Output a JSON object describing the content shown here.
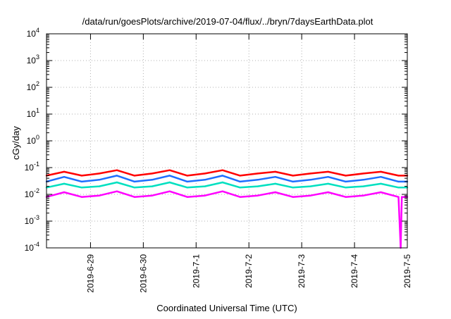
{
  "chart_data": {
    "type": "line",
    "title": "/data/run/goesPlots/archive/2019-07-04/flux/../bryn/7daysEarthData.plot",
    "xlabel": "Coordinated Universal Time (UTC)",
    "ylabel": "cGy/day",
    "y_scale": "log",
    "ylim": [
      0.0001,
      10000
    ],
    "y_ticks": [
      {
        "base": "10",
        "exp": "-4",
        "value": 0.0001
      },
      {
        "base": "10",
        "exp": "-3",
        "value": 0.001
      },
      {
        "base": "10",
        "exp": "-2",
        "value": 0.01
      },
      {
        "base": "10",
        "exp": "-1",
        "value": 0.1
      },
      {
        "base": "10",
        "exp": "0",
        "value": 1
      },
      {
        "base": "10",
        "exp": "1",
        "value": 10
      },
      {
        "base": "10",
        "exp": "2",
        "value": 100
      },
      {
        "base": "10",
        "exp": "3",
        "value": 1000
      },
      {
        "base": "10",
        "exp": "4",
        "value": 10000
      }
    ],
    "xlim": [
      "2019-06-28 04:00",
      "2019-07-05 00:00"
    ],
    "x_ticks": [
      "2019-6-29",
      "2019-6-30",
      "2019-7-1",
      "2019-7-2",
      "2019-7-3",
      "2019-7-4",
      "2019-7-5"
    ],
    "grid": true,
    "series": [
      {
        "color": "#ff0000",
        "x": [
          "2019-06-28 04:00",
          "2019-06-28 12:00",
          "2019-06-28 20:00",
          "2019-06-29 04:00",
          "2019-06-29 12:00",
          "2019-06-29 20:00",
          "2019-06-30 04:00",
          "2019-06-30 12:00",
          "2019-06-30 20:00",
          "2019-07-01 04:00",
          "2019-07-01 12:00",
          "2019-07-01 20:00",
          "2019-07-02 04:00",
          "2019-07-02 12:00",
          "2019-07-02 20:00",
          "2019-07-03 04:00",
          "2019-07-03 12:00",
          "2019-07-03 20:00",
          "2019-07-04 04:00",
          "2019-07-04 12:00",
          "2019-07-04 20:00",
          "2019-07-05 00:00"
        ],
        "values": [
          0.05,
          0.07,
          0.05,
          0.06,
          0.08,
          0.05,
          0.06,
          0.08,
          0.05,
          0.06,
          0.08,
          0.05,
          0.06,
          0.07,
          0.05,
          0.06,
          0.07,
          0.05,
          0.06,
          0.07,
          0.05,
          0.05
        ]
      },
      {
        "color": "#1e6eff",
        "x": [
          "2019-06-28 04:00",
          "2019-06-28 12:00",
          "2019-06-28 20:00",
          "2019-06-29 04:00",
          "2019-06-29 12:00",
          "2019-06-29 20:00",
          "2019-06-30 04:00",
          "2019-06-30 12:00",
          "2019-06-30 20:00",
          "2019-07-01 04:00",
          "2019-07-01 12:00",
          "2019-07-01 20:00",
          "2019-07-02 04:00",
          "2019-07-02 12:00",
          "2019-07-02 20:00",
          "2019-07-03 04:00",
          "2019-07-03 12:00",
          "2019-07-03 20:00",
          "2019-07-04 04:00",
          "2019-07-04 12:00",
          "2019-07-04 20:00",
          "2019-07-05 00:00"
        ],
        "values": [
          0.03,
          0.045,
          0.03,
          0.035,
          0.05,
          0.03,
          0.035,
          0.05,
          0.03,
          0.035,
          0.05,
          0.03,
          0.035,
          0.045,
          0.03,
          0.035,
          0.045,
          0.03,
          0.035,
          0.045,
          0.03,
          0.03
        ]
      },
      {
        "color": "#00e0c0",
        "x": [
          "2019-06-28 04:00",
          "2019-06-28 12:00",
          "2019-06-28 20:00",
          "2019-06-29 04:00",
          "2019-06-29 12:00",
          "2019-06-29 20:00",
          "2019-06-30 04:00",
          "2019-06-30 12:00",
          "2019-06-30 20:00",
          "2019-07-01 04:00",
          "2019-07-01 12:00",
          "2019-07-01 20:00",
          "2019-07-02 04:00",
          "2019-07-02 12:00",
          "2019-07-02 20:00",
          "2019-07-03 04:00",
          "2019-07-03 12:00",
          "2019-07-03 20:00",
          "2019-07-04 04:00",
          "2019-07-04 12:00",
          "2019-07-04 20:00",
          "2019-07-05 00:00"
        ],
        "values": [
          0.018,
          0.025,
          0.018,
          0.02,
          0.028,
          0.018,
          0.02,
          0.028,
          0.018,
          0.02,
          0.028,
          0.018,
          0.02,
          0.025,
          0.018,
          0.02,
          0.025,
          0.018,
          0.02,
          0.025,
          0.018,
          0.018
        ]
      },
      {
        "color": "#ff00ff",
        "x": [
          "2019-06-28 04:00",
          "2019-06-28 12:00",
          "2019-06-28 20:00",
          "2019-06-29 04:00",
          "2019-06-29 12:00",
          "2019-06-29 20:00",
          "2019-06-30 04:00",
          "2019-06-30 12:00",
          "2019-06-30 20:00",
          "2019-07-01 04:00",
          "2019-07-01 12:00",
          "2019-07-01 20:00",
          "2019-07-02 04:00",
          "2019-07-02 12:00",
          "2019-07-02 20:00",
          "2019-07-03 04:00",
          "2019-07-03 12:00",
          "2019-07-03 20:00",
          "2019-07-04 04:00",
          "2019-07-04 12:00",
          "2019-07-04 20:00",
          "2019-07-04 21:00",
          "2019-07-04 21:30",
          "2019-07-05 00:00"
        ],
        "values": [
          0.008,
          0.012,
          0.008,
          0.009,
          0.013,
          0.008,
          0.009,
          0.013,
          0.008,
          0.009,
          0.013,
          0.008,
          0.009,
          0.012,
          0.008,
          0.009,
          0.012,
          0.008,
          0.009,
          0.012,
          0.008,
          0.0001,
          0.008,
          0.008
        ]
      }
    ]
  }
}
